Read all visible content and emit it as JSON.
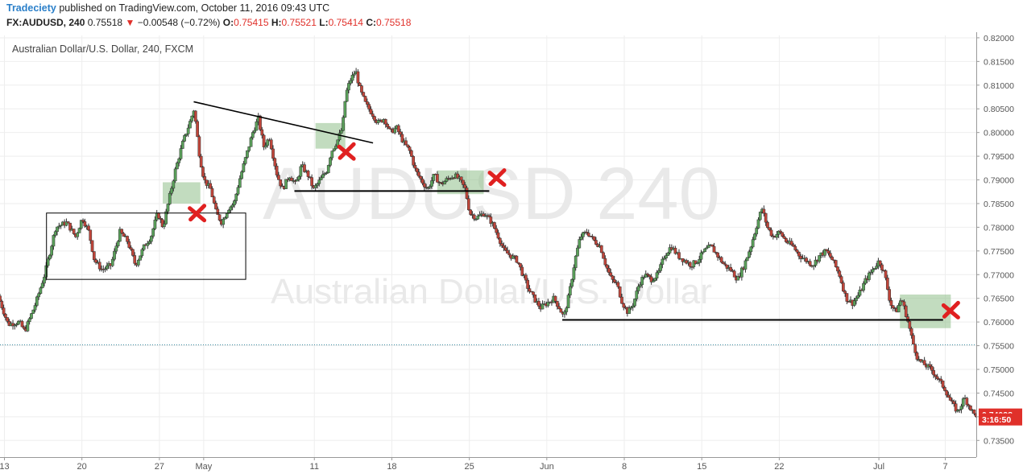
{
  "header": {
    "author": "Tradeciety",
    "published_text": "published on TradingView.com, October 11, 2016 09:43 UTC"
  },
  "symbol_bar": {
    "symbol": "FX:AUDUSD,",
    "interval": "240",
    "last": "0.75518",
    "change": "−0.00548 (−0.72%)",
    "o_label": "O:",
    "o_value": "0.75415",
    "h_label": "H:",
    "h_value": "0.75521",
    "l_label": "L:",
    "l_value": "0.75414",
    "c_label": "C:",
    "c_value": "0.75518",
    "down_color": "#e0302a"
  },
  "chart_data": {
    "type": "candlestick",
    "title": "Australian Dollar/U.S. Dollar, 240, FXCM",
    "watermark_symbol": "AUDUSD 240",
    "watermark_name": "Australian Dollar/U.S. Dollar",
    "ylim": [
      0.7325,
      0.8205
    ],
    "y_ticks": [
      "0.73500",
      "0.74000",
      "0.74500",
      "0.75000",
      "0.75500",
      "0.76000",
      "0.76500",
      "0.77000",
      "0.77500",
      "0.78000",
      "0.78500",
      "0.79000",
      "0.79500",
      "0.80000",
      "0.80500",
      "0.81000",
      "0.81500",
      "0.82000"
    ],
    "x_ticks": [
      {
        "label": "13",
        "day": 13
      },
      {
        "label": "20",
        "day": 20
      },
      {
        "label": "27",
        "day": 27
      },
      {
        "label": "May",
        "day": 31
      },
      {
        "label": "11",
        "day": 41
      },
      {
        "label": "18",
        "day": 48
      },
      {
        "label": "25",
        "day": 55
      },
      {
        "label": "Jun",
        "day": 62
      },
      {
        "label": "8",
        "day": 69
      },
      {
        "label": "15",
        "day": 76
      },
      {
        "label": "22",
        "day": 83
      },
      {
        "label": "Jul",
        "day": 92
      },
      {
        "label": "7",
        "day": 98
      }
    ],
    "x_range_days": [
      12.6,
      100.8
    ],
    "price_path": [
      [
        12.6,
        0.7655
      ],
      [
        13.5,
        0.7595
      ],
      [
        14.5,
        0.76
      ],
      [
        15.0,
        0.758
      ],
      [
        16.0,
        0.764
      ],
      [
        16.8,
        0.77
      ],
      [
        17.8,
        0.78
      ],
      [
        18.8,
        0.781
      ],
      [
        19.6,
        0.778
      ],
      [
        20.2,
        0.782
      ],
      [
        20.8,
        0.779
      ],
      [
        21.3,
        0.773
      ],
      [
        22.0,
        0.771
      ],
      [
        22.8,
        0.772
      ],
      [
        23.6,
        0.779
      ],
      [
        24.3,
        0.777
      ],
      [
        25.0,
        0.772
      ],
      [
        25.8,
        0.776
      ],
      [
        26.4,
        0.778
      ],
      [
        27.0,
        0.783
      ],
      [
        27.5,
        0.78
      ],
      [
        28.0,
        0.7855
      ],
      [
        28.6,
        0.792
      ],
      [
        29.3,
        0.798
      ],
      [
        29.9,
        0.802
      ],
      [
        30.3,
        0.805
      ],
      [
        30.8,
        0.795
      ],
      [
        31.2,
        0.79
      ],
      [
        31.8,
        0.788
      ],
      [
        32.3,
        0.783
      ],
      [
        32.8,
        0.781
      ],
      [
        33.4,
        0.784
      ],
      [
        33.9,
        0.785
      ],
      [
        34.4,
        0.79
      ],
      [
        35.0,
        0.795
      ],
      [
        35.6,
        0.8
      ],
      [
        36.1,
        0.803
      ],
      [
        36.6,
        0.797
      ],
      [
        37.1,
        0.799
      ],
      [
        37.8,
        0.791
      ],
      [
        38.3,
        0.788
      ],
      [
        38.9,
        0.791
      ],
      [
        39.5,
        0.789
      ],
      [
        40.0,
        0.793
      ],
      [
        40.6,
        0.791
      ],
      [
        41.1,
        0.788
      ],
      [
        41.7,
        0.79
      ],
      [
        42.3,
        0.792
      ],
      [
        42.7,
        0.796
      ],
      [
        43.2,
        0.798
      ],
      [
        43.7,
        0.801
      ],
      [
        44.0,
        0.808
      ],
      [
        44.4,
        0.811
      ],
      [
        44.9,
        0.813
      ],
      [
        45.3,
        0.809
      ],
      [
        45.8,
        0.806
      ],
      [
        46.4,
        0.804
      ],
      [
        46.9,
        0.802
      ],
      [
        47.5,
        0.803
      ],
      [
        48.0,
        0.8
      ],
      [
        48.6,
        0.801
      ],
      [
        49.2,
        0.798
      ],
      [
        49.8,
        0.796
      ],
      [
        50.3,
        0.792
      ],
      [
        50.8,
        0.79
      ],
      [
        51.4,
        0.788
      ],
      [
        52.0,
        0.791
      ],
      [
        52.6,
        0.789
      ],
      [
        53.1,
        0.79
      ],
      [
        53.8,
        0.791
      ],
      [
        54.3,
        0.79
      ],
      [
        54.8,
        0.788
      ],
      [
        55.2,
        0.783
      ],
      [
        55.8,
        0.782
      ],
      [
        56.5,
        0.783
      ],
      [
        57.2,
        0.781
      ],
      [
        57.8,
        0.778
      ],
      [
        58.3,
        0.775
      ],
      [
        58.9,
        0.774
      ],
      [
        59.5,
        0.773
      ],
      [
        60.0,
        0.77
      ],
      [
        60.5,
        0.767
      ],
      [
        61.0,
        0.765
      ],
      [
        61.6,
        0.763
      ],
      [
        62.2,
        0.764
      ],
      [
        62.8,
        0.765
      ],
      [
        63.3,
        0.763
      ],
      [
        63.7,
        0.761
      ],
      [
        64.2,
        0.766
      ],
      [
        64.7,
        0.773
      ],
      [
        65.2,
        0.778
      ],
      [
        65.8,
        0.779
      ],
      [
        66.5,
        0.777
      ],
      [
        67.0,
        0.776
      ],
      [
        67.5,
        0.772
      ],
      [
        68.0,
        0.769
      ],
      [
        68.5,
        0.768
      ],
      [
        69.0,
        0.764
      ],
      [
        69.5,
        0.762
      ],
      [
        70.0,
        0.764
      ],
      [
        70.5,
        0.768
      ],
      [
        71.0,
        0.77
      ],
      [
        71.6,
        0.769
      ],
      [
        72.2,
        0.77
      ],
      [
        72.8,
        0.774
      ],
      [
        73.4,
        0.776
      ],
      [
        74.0,
        0.774
      ],
      [
        74.6,
        0.773
      ],
      [
        75.2,
        0.772
      ],
      [
        75.8,
        0.773
      ],
      [
        76.4,
        0.775
      ],
      [
        77.0,
        0.776
      ],
      [
        77.6,
        0.774
      ],
      [
        78.2,
        0.772
      ],
      [
        78.8,
        0.771
      ],
      [
        79.4,
        0.769
      ],
      [
        80.0,
        0.772
      ],
      [
        80.6,
        0.776
      ],
      [
        81.2,
        0.781
      ],
      [
        81.6,
        0.784
      ],
      [
        82.1,
        0.78
      ],
      [
        82.6,
        0.778
      ],
      [
        83.2,
        0.779
      ],
      [
        83.8,
        0.777
      ],
      [
        84.4,
        0.776
      ],
      [
        85.0,
        0.774
      ],
      [
        85.6,
        0.773
      ],
      [
        86.2,
        0.772
      ],
      [
        86.8,
        0.774
      ],
      [
        87.4,
        0.775
      ],
      [
        88.0,
        0.773
      ],
      [
        88.6,
        0.77
      ],
      [
        89.2,
        0.765
      ],
      [
        89.8,
        0.764
      ],
      [
        90.4,
        0.766
      ],
      [
        91.0,
        0.769
      ],
      [
        91.6,
        0.771
      ],
      [
        92.2,
        0.773
      ],
      [
        92.7,
        0.77
      ],
      [
        93.2,
        0.764
      ],
      [
        93.7,
        0.762
      ],
      [
        94.2,
        0.765
      ],
      [
        94.7,
        0.761
      ],
      [
        95.2,
        0.756
      ],
      [
        95.7,
        0.752
      ],
      [
        96.3,
        0.751
      ],
      [
        96.9,
        0.75
      ],
      [
        97.5,
        0.748
      ],
      [
        98.1,
        0.746
      ],
      [
        98.7,
        0.743
      ],
      [
        99.3,
        0.741
      ],
      [
        99.9,
        0.744
      ],
      [
        100.4,
        0.742
      ],
      [
        100.8,
        0.7404
      ]
    ],
    "current_price": {
      "value": 0.75518,
      "dotted_line": true
    },
    "price_labels": [
      {
        "text": "0.74038",
        "value": 0.74038,
        "color": "#e0302a"
      },
      {
        "text": "3:16:50",
        "value": 0.73935,
        "color": "#e0302a"
      }
    ],
    "drawings": {
      "rectangle": {
        "d1": 16.8,
        "p1": 0.783,
        "d2": 34.8,
        "p2": 0.769,
        "color": "#000000"
      },
      "trendline": {
        "d1": 30.1,
        "p1": 0.8065,
        "d2": 46.3,
        "p2": 0.7978,
        "color": "#000000"
      },
      "h_lines": [
        {
          "d1": 39.2,
          "d2": 56.8,
          "value": 0.78765,
          "color": "#000000"
        },
        {
          "d1": 63.4,
          "d2": 97.8,
          "value": 0.76045,
          "color": "#000000"
        }
      ],
      "green_zones": [
        {
          "d1": 27.3,
          "p1": 0.785,
          "d2": 30.7,
          "p2": 0.7895,
          "color": "#8fc08a"
        },
        {
          "d1": 41.1,
          "p1": 0.7966,
          "d2": 43.8,
          "p2": 0.802,
          "color": "#8fc08a"
        },
        {
          "d1": 52.1,
          "p1": 0.787,
          "d2": 56.3,
          "p2": 0.792,
          "color": "#8fc08a"
        },
        {
          "d1": 93.9,
          "p1": 0.7587,
          "d2": 98.5,
          "p2": 0.7658,
          "color": "#8fc08a"
        }
      ],
      "x_marks": [
        {
          "d": 30.4,
          "p": 0.783,
          "color": "#e02020"
        },
        {
          "d": 43.9,
          "p": 0.796,
          "color": "#e02020"
        },
        {
          "d": 57.5,
          "p": 0.7905,
          "color": "#e02020"
        },
        {
          "d": 98.5,
          "p": 0.7625,
          "color": "#e02020"
        }
      ]
    },
    "colors": {
      "up": "#5aa05a",
      "down": "#c0453a",
      "grid": "#eeeeee",
      "text": "#555555"
    }
  }
}
